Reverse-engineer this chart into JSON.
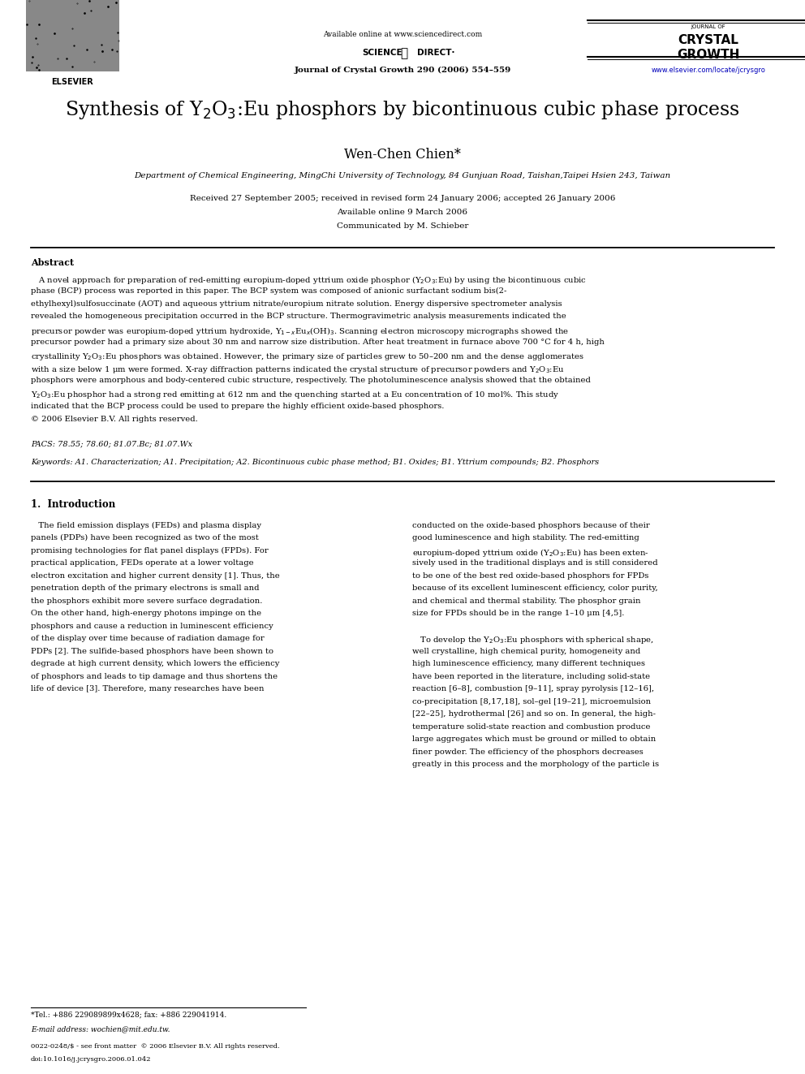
{
  "bg_color": "#ffffff",
  "page_width": 9.92,
  "page_height": 13.23,
  "url_color": "#0000bb",
  "ref_color": "#0000bb",
  "title": "Synthesis of Y$_2$O$_3$:Eu phosphors by bicontinuous cubic phase process",
  "author": "Wen-Chen Chien*",
  "affiliation": "Department of Chemical Engineering, MingChi University of Technology, 84 Gunjuan Road, Taishan,Taipei Hsien 243, Taiwan",
  "date_line1": "Received 27 September 2005; received in revised form 24 January 2006; accepted 26 January 2006",
  "date_line2": "Available online 9 March 2006",
  "date_line3": "Communicated by M. Schieber",
  "abstract_title": "Abstract",
  "pacs_line": "PACS: 78.55; 78.60; 81.07.Bc; 81.07.Wx",
  "keywords_line": "Keywords: A1. Characterization; A1. Precipitation; A2. Bicontinuous cubic phase method; B1. Oxides; B1. Yttrium compounds; B2. Phosphors",
  "section1_title": "1.  Introduction",
  "footnote_line1": "*Tel.: +886 229089899x4628; fax: +886 229041914.",
  "footnote_line2": "E-mail address: wochien@mit.edu.tw.",
  "copyright_line1": "0022-0248/$ - see front matter  © 2006 Elsevier B.V. All rights reserved.",
  "copyright_line2": "doi:10.1016/j.jcrysgro.2006.01.042"
}
